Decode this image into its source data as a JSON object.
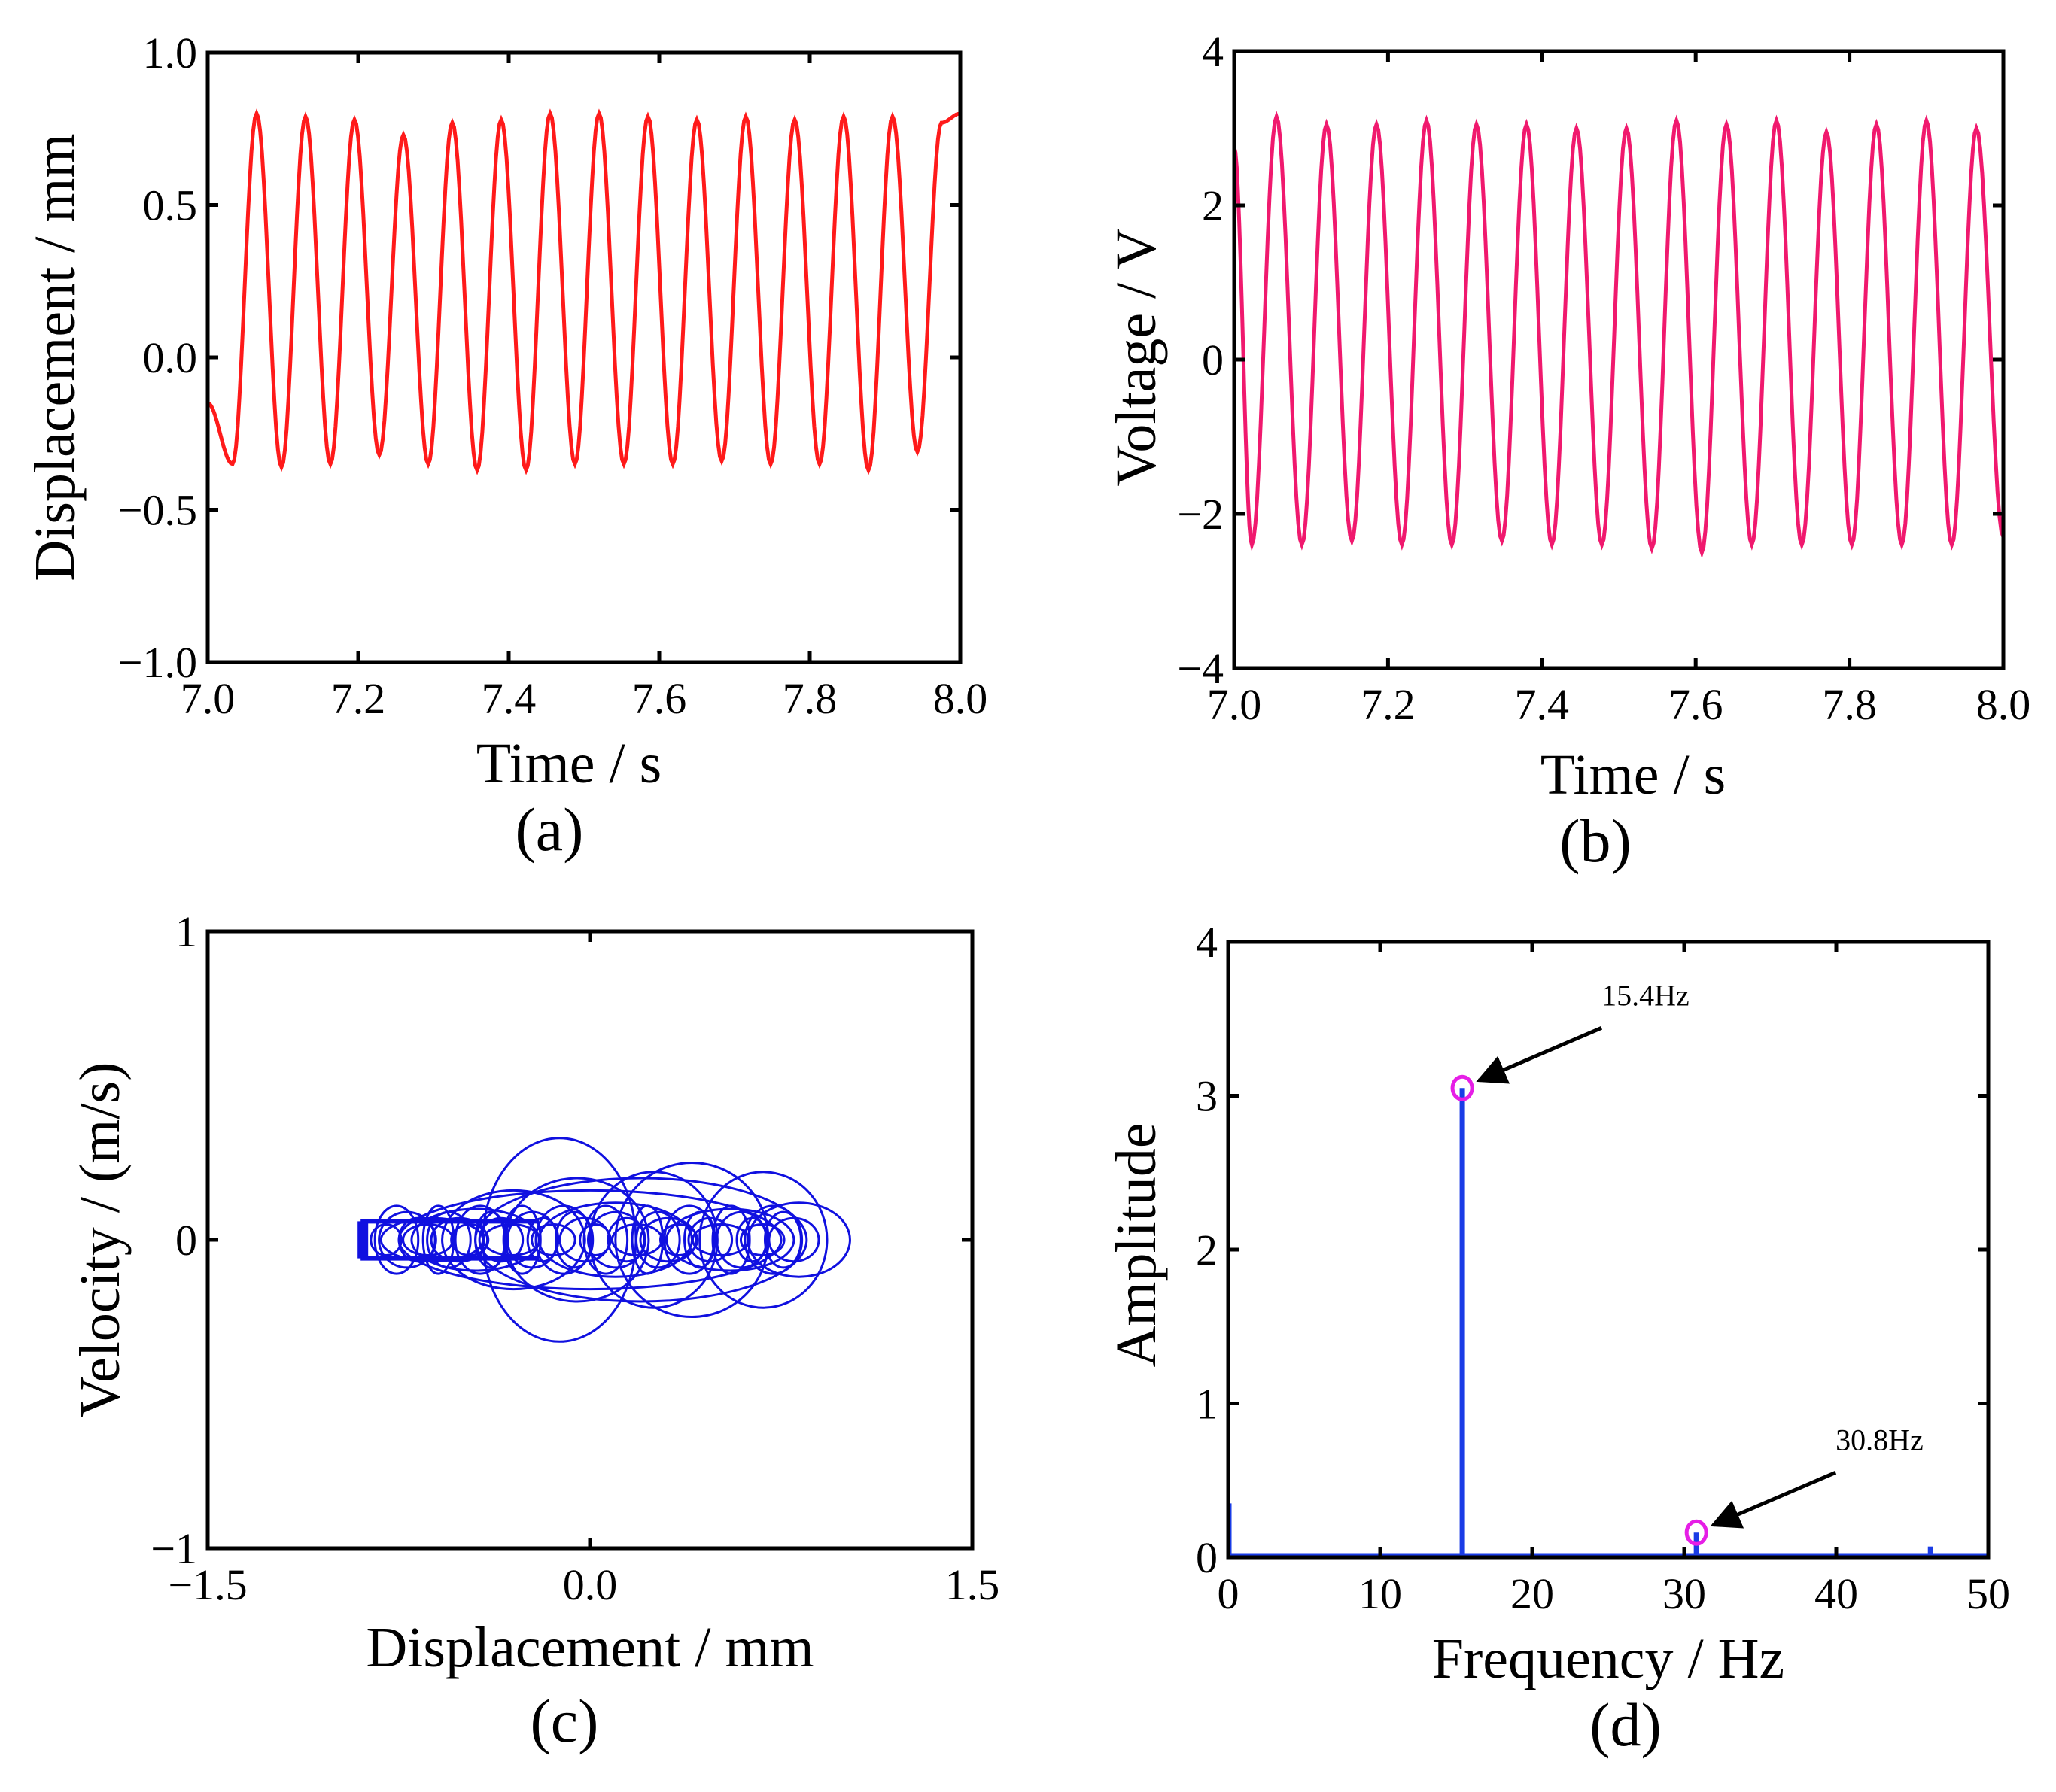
{
  "chart_data": [
    {
      "id": "a",
      "type": "line",
      "caption": "(a)",
      "xlabel": "Time / s",
      "ylabel": "Displacement / mm",
      "xlim": [
        7.0,
        8.0
      ],
      "ylim": [
        -1.0,
        1.0
      ],
      "xticks": [
        "7.0",
        "7.2",
        "7.4",
        "7.6",
        "7.8",
        "8.0"
      ],
      "yticks": [
        "1.0",
        "0.5",
        "0.0",
        "−0.5",
        "−1.0"
      ],
      "color": "#ff1a1a",
      "series": [
        {
          "name": "displacement",
          "frequency_hz": 15.4,
          "t_start": 7.0,
          "t_end": 8.0,
          "peaks_t": [
            7.065,
            7.13,
            7.195,
            7.26,
            7.325,
            7.39,
            7.455,
            7.52,
            7.585,
            7.65,
            7.715,
            7.78,
            7.845,
            7.91,
            7.975
          ],
          "peaks_v": [
            0.8,
            0.79,
            0.78,
            0.73,
            0.77,
            0.78,
            0.8,
            0.8,
            0.79,
            0.78,
            0.79,
            0.78,
            0.79,
            0.79,
            0.77
          ],
          "troughs_t": [
            7.033,
            7.098,
            7.163,
            7.228,
            7.293,
            7.358,
            7.423,
            7.488,
            7.553,
            7.618,
            7.683,
            7.748,
            7.813,
            7.878,
            7.943
          ],
          "troughs_v": [
            -0.35,
            -0.36,
            -0.35,
            -0.32,
            -0.35,
            -0.37,
            -0.37,
            -0.35,
            -0.35,
            -0.35,
            -0.34,
            -0.35,
            -0.35,
            -0.37,
            -0.31
          ],
          "start_v": -0.15,
          "end_v": 0.8
        }
      ]
    },
    {
      "id": "b",
      "type": "line",
      "caption": "(b)",
      "xlabel": "Time / s",
      "ylabel": "Voltage / V",
      "xlim": [
        7.0,
        8.0
      ],
      "ylim": [
        -4,
        4
      ],
      "xticks": [
        "7.0",
        "7.2",
        "7.4",
        "7.6",
        "7.8",
        "8.0"
      ],
      "yticks": [
        "4",
        "2",
        "0",
        "−2",
        "−4"
      ],
      "color": "#f0196e",
      "series": [
        {
          "name": "voltage",
          "frequency_hz": 15.4,
          "t_start": 7.0,
          "t_end": 8.0,
          "peaks_t": [
            7.055,
            7.12,
            7.185,
            7.25,
            7.315,
            7.38,
            7.445,
            7.51,
            7.575,
            7.64,
            7.705,
            7.77,
            7.835,
            7.9,
            7.965
          ],
          "peaks_v": [
            3.15,
            3.05,
            3.05,
            3.1,
            3.05,
            3.05,
            3.0,
            3.0,
            3.1,
            3.05,
            3.1,
            2.95,
            3.05,
            3.1,
            3.0
          ],
          "troughs_t": [
            7.023,
            7.088,
            7.153,
            7.218,
            7.283,
            7.348,
            7.413,
            7.478,
            7.543,
            7.608,
            7.673,
            7.738,
            7.803,
            7.868,
            7.933
          ],
          "troughs_v": [
            -2.4,
            -2.4,
            -2.35,
            -2.4,
            -2.4,
            -2.35,
            -2.4,
            -2.4,
            -2.45,
            -2.5,
            -2.4,
            -2.4,
            -2.4,
            -2.4,
            -2.4
          ],
          "start_v": 2.75,
          "end_v": -2.3
        }
      ]
    },
    {
      "id": "c",
      "type": "line",
      "caption": "(c)",
      "xlabel": "Displacement / mm",
      "ylabel": "Velocity / (m/s)",
      "xlim": [
        -1.5,
        1.5
      ],
      "ylim": [
        -1,
        1
      ],
      "xticks": [
        "−1.5",
        "0.0",
        "1.5"
      ],
      "yticks": [
        "1",
        "0",
        "−1"
      ],
      "color": "#1010e0",
      "series": [
        {
          "name": "phase portrait",
          "loops": [
            {
              "cx": -0.62,
              "rx": 0.2,
              "ry": 0.07
            },
            {
              "cx": -0.45,
              "rx": 0.25,
              "ry": 0.1
            },
            {
              "cx": -0.3,
              "rx": 0.28,
              "ry": 0.16
            },
            {
              "cx": -0.12,
              "rx": 0.3,
              "ry": 0.33
            },
            {
              "cx": -0.05,
              "rx": 0.28,
              "ry": 0.2
            },
            {
              "cx": 0.1,
              "rx": 0.3,
              "ry": 0.12
            },
            {
              "cx": 0.25,
              "rx": 0.25,
              "ry": 0.22
            },
            {
              "cx": 0.4,
              "rx": 0.3,
              "ry": 0.25
            },
            {
              "cx": 0.55,
              "rx": 0.25,
              "ry": 0.1
            },
            {
              "cx": 0.68,
              "rx": 0.25,
              "ry": 0.22
            },
            {
              "cx": 0.82,
              "rx": 0.2,
              "ry": 0.12
            },
            {
              "cx": 0.2,
              "rx": 0.65,
              "ry": 0.2
            },
            {
              "cx": 0.0,
              "rx": 0.75,
              "ry": 0.16
            }
          ],
          "x_range": [
            -0.9,
            0.9
          ],
          "v_range": [
            -0.27,
            0.33
          ]
        }
      ]
    },
    {
      "id": "d",
      "type": "bar",
      "caption": "(d)",
      "xlabel": "Frequency / Hz",
      "ylabel": "Amplitude",
      "xlim": [
        0,
        50
      ],
      "ylim": [
        0,
        4
      ],
      "xticks": [
        "0",
        "10",
        "20",
        "30",
        "40",
        "50"
      ],
      "yticks": [
        "4",
        "3",
        "2",
        "1",
        "0"
      ],
      "color": "#1a3ce6",
      "marker_color": "#e61ee6",
      "series": [
        {
          "name": "spectrum",
          "x": [
            0.05,
            15.4,
            30.8,
            46.2
          ],
          "values": [
            0.35,
            3.05,
            0.16,
            0.07
          ]
        }
      ],
      "annotations": [
        {
          "label": "15.4Hz",
          "x": 15.4,
          "y": 3.05
        },
        {
          "label": "30.8Hz",
          "x": 30.8,
          "y": 0.16
        }
      ]
    }
  ]
}
